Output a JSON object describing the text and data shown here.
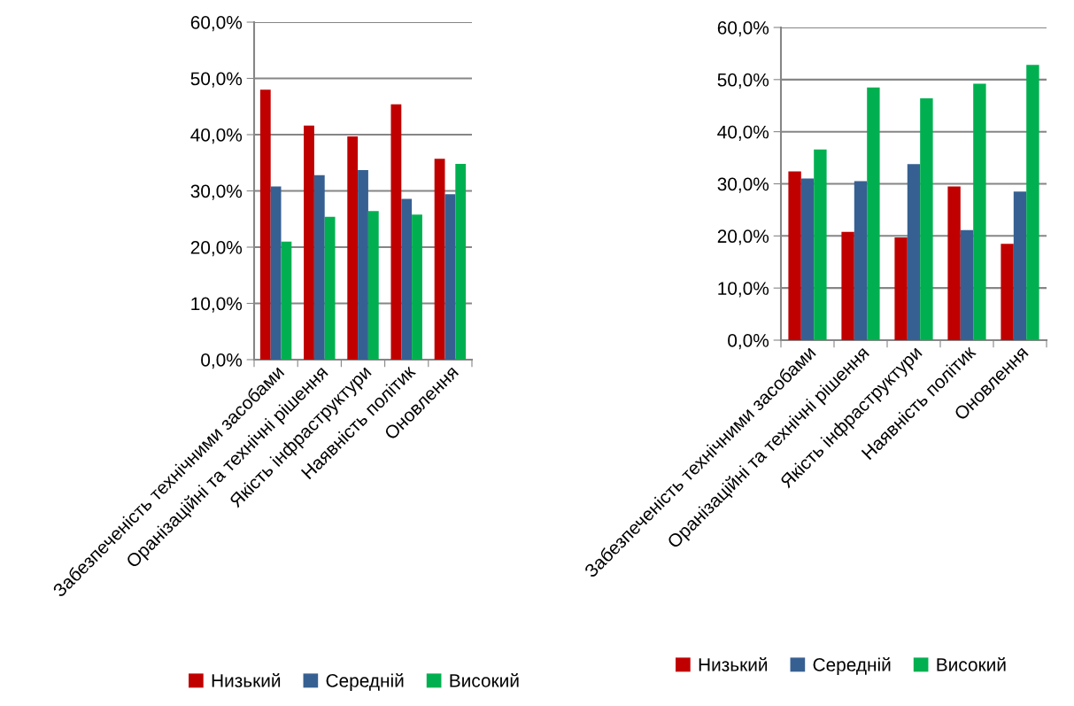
{
  "chart_data": [
    {
      "type": "bar",
      "categories": [
        "Забезпеченість технічними засобами",
        "Оранізаційні та технічні рішення",
        "Якість інфраструктури",
        "Наявність політик",
        "Оновлення"
      ],
      "series": [
        {
          "name": "Низький",
          "color": "#c00000",
          "values": [
            48.0,
            41.6,
            39.7,
            45.4,
            35.7
          ]
        },
        {
          "name": "Середній",
          "color": "#376092",
          "values": [
            30.8,
            32.8,
            33.7,
            28.6,
            29.4
          ]
        },
        {
          "name": "Високий",
          "color": "#00b050",
          "values": [
            21.0,
            25.4,
            26.4,
            25.8,
            34.8
          ]
        }
      ],
      "ylim": [
        0,
        60
      ],
      "yticks": [
        {
          "value": 0,
          "label": "0,0%"
        },
        {
          "value": 10,
          "label": "10,0%"
        },
        {
          "value": 20,
          "label": "20,0%"
        },
        {
          "value": 30,
          "label": "30,0%"
        },
        {
          "value": 40,
          "label": "40,0%"
        },
        {
          "value": 50,
          "label": "50,0%"
        },
        {
          "value": 60,
          "label": "60,0%"
        }
      ],
      "grid": "y",
      "legend": "bottom"
    },
    {
      "type": "bar",
      "categories": [
        "Забезпеченість технічними засобами",
        "Оранізаційні та технічні рішення",
        "Якість інфраструктури",
        "Наявність політик",
        "Оновлення"
      ],
      "series": [
        {
          "name": "Низький",
          "color": "#c00000",
          "values": [
            32.4,
            20.8,
            19.7,
            29.5,
            18.5
          ]
        },
        {
          "name": "Середній",
          "color": "#376092",
          "values": [
            31.0,
            30.5,
            33.8,
            21.1,
            28.5
          ]
        },
        {
          "name": "Високий",
          "color": "#00b050",
          "values": [
            36.6,
            48.5,
            46.4,
            49.2,
            52.8
          ]
        }
      ],
      "ylim": [
        0,
        60
      ],
      "yticks": [
        {
          "value": 0,
          "label": "0,0%"
        },
        {
          "value": 10,
          "label": "10,0%"
        },
        {
          "value": 20,
          "label": "20,0%"
        },
        {
          "value": 30,
          "label": "30,0%"
        },
        {
          "value": 40,
          "label": "40,0%"
        },
        {
          "value": 50,
          "label": "50,0%"
        },
        {
          "value": 60,
          "label": "60,0%"
        }
      ],
      "grid": "y",
      "legend": "bottom"
    }
  ]
}
